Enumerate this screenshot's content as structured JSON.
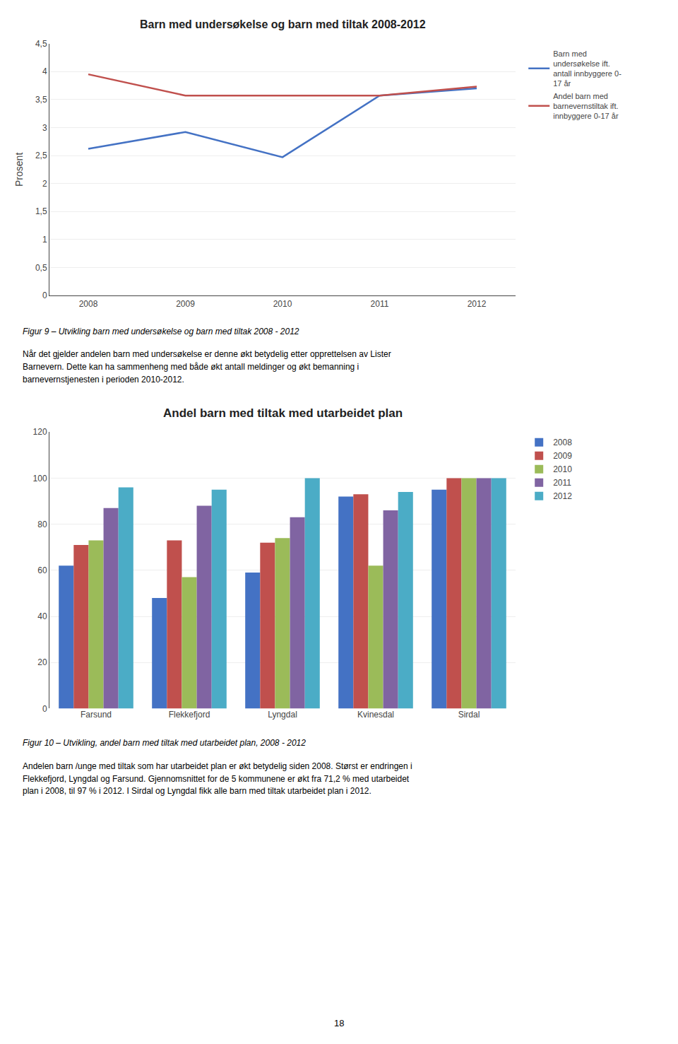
{
  "chart_data": [
    {
      "type": "line",
      "title": "Barn med undersøkelse og barn med tiltak 2008-2012",
      "ylabel": "Prosent",
      "x": [
        2008,
        2009,
        2010,
        2011,
        2012
      ],
      "series": [
        {
          "name": "Barn med\nundersøkelse ift.\nantall innbyggere 0-\n17 år",
          "color": "#4472C4",
          "values": [
            2.62,
            2.92,
            2.47,
            3.57,
            3.7
          ]
        },
        {
          "name": "Andel barn med\nbarnevernstiltak ift.\ninnbyggere 0-17 år",
          "color": "#C0504D",
          "values": [
            3.95,
            3.57,
            3.57,
            3.57,
            3.73
          ]
        }
      ],
      "xlim": [
        2007.6,
        2012.4
      ],
      "xticks": [
        2008,
        2009,
        2010,
        2011,
        2012
      ],
      "ylim": [
        0,
        4.5
      ],
      "yticks": [
        0,
        {
          "value": 0.5,
          "label": "0,5"
        },
        1,
        {
          "value": 1.5,
          "label": "1,5"
        },
        2,
        {
          "value": 2.5,
          "label": "2,5"
        },
        3,
        {
          "value": 3.5,
          "label": "3,5"
        },
        4,
        {
          "value": 4.5,
          "label": "4,5"
        }
      ],
      "grid": true,
      "legend": "right",
      "caption": "Figur 9 – Utvikling barn med undersøkelse og barn med tiltak 2008 - 2012",
      "annotations": [
        "Når det gjelder andelen barn med undersøkelse er denne økt betydelig etter opprettelsen av Lister",
        "Barnevern. Dette kan ha sammenheng med både økt antall meldinger og økt bemanning i",
        "barnevernstjenesten i perioden 2010-2012."
      ]
    },
    {
      "type": "bar",
      "title": "Andel barn med tiltak med utarbeidet plan",
      "categories": [
        "Farsund",
        "Flekkefjord",
        "Lyngdal",
        "Kvinesdal",
        "Sirdal"
      ],
      "series": [
        {
          "name": "2008",
          "color": "#4472C4",
          "values": [
            62,
            48,
            59,
            92,
            95
          ]
        },
        {
          "name": "2009",
          "color": "#C0504D",
          "values": [
            71,
            73,
            72,
            93,
            100
          ]
        },
        {
          "name": "2010",
          "color": "#9BBB59",
          "values": [
            73,
            57,
            74,
            62,
            100
          ]
        },
        {
          "name": "2011",
          "color": "#8064A2",
          "values": [
            87,
            88,
            83,
            86,
            100
          ]
        },
        {
          "name": "2012",
          "color": "#4BACC6",
          "values": [
            96,
            95,
            100,
            94,
            100
          ]
        }
      ],
      "ylim": [
        0,
        120
      ],
      "yticks": [
        0,
        20,
        40,
        60,
        80,
        100,
        120
      ],
      "grid": true,
      "legend": "right",
      "caption": "Figur 10 – Utvikling, andel barn med tiltak med utarbeidet plan, 2008 - 2012",
      "annotations": [
        "Andelen barn /unge med tiltak som har utarbeidet plan er økt betydelig siden 2008. Størst er endringen i",
        "Flekkefjord, Lyngdal og Farsund. Gjennomsnittet for de 5 kommunene er økt fra 71,2 % med utarbeidet",
        "plan i 2008, til 97 % i 2012. I Sirdal og Lyngdal fikk alle barn med tiltak utarbeidet plan i 2012."
      ]
    }
  ],
  "page_number": "18"
}
